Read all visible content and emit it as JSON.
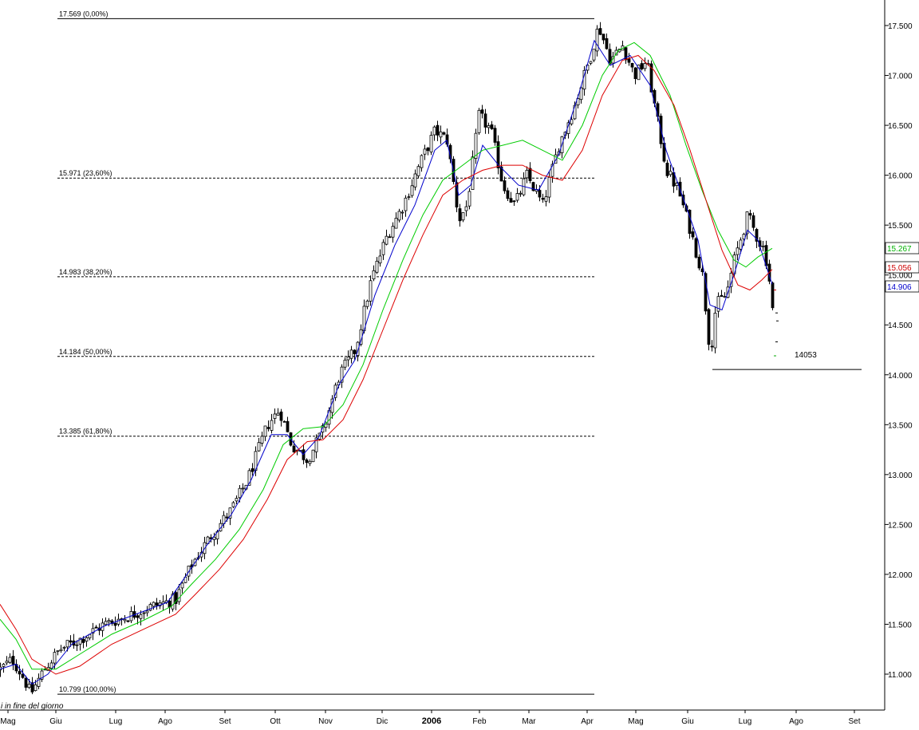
{
  "chart_data": {
    "type": "candlestick",
    "ylim": [
      10600,
      17800
    ],
    "y_ticks": [
      11000,
      11500,
      12000,
      12500,
      13000,
      13500,
      14000,
      14500,
      15000,
      15500,
      16000,
      16500,
      17000,
      17500
    ],
    "y_tick_labels": [
      "11.000",
      "11.500",
      "12.000",
      "12.500",
      "13.000",
      "13.500",
      "14.000",
      "14.500",
      "15.000",
      "15.500",
      "16.000",
      "16.500",
      "17.000",
      "17.500"
    ],
    "x_ticks": [
      {
        "label": "Mag",
        "bold": false
      },
      {
        "label": "Giu",
        "bold": false
      },
      {
        "label": "Lug",
        "bold": false
      },
      {
        "label": "Ago",
        "bold": false
      },
      {
        "label": "Set",
        "bold": false
      },
      {
        "label": "Ott",
        "bold": false
      },
      {
        "label": "Nov",
        "bold": false
      },
      {
        "label": "Dic",
        "bold": false
      },
      {
        "label": "2006",
        "bold": true
      },
      {
        "label": "Feb",
        "bold": false
      },
      {
        "label": "Mar",
        "bold": false
      },
      {
        "label": "Apr",
        "bold": false
      },
      {
        "label": "Mag",
        "bold": false
      },
      {
        "label": "Giu",
        "bold": false
      },
      {
        "label": "Lug",
        "bold": false
      },
      {
        "label": "Ago",
        "bold": false
      },
      {
        "label": "Set",
        "bold": false
      }
    ],
    "fibonacci_levels": [
      {
        "value": 17569,
        "label": "17.569 (0,00%)",
        "style": "solid"
      },
      {
        "value": 15971,
        "label": "15.971 (23,60%)",
        "style": "dashed"
      },
      {
        "value": 14983,
        "label": "14.983 (38,20%)",
        "style": "dashed"
      },
      {
        "value": 14184,
        "label": "14.184 (50,00%)",
        "style": "dashed"
      },
      {
        "value": 13385,
        "label": "13.385 (61,80%)",
        "style": "dashed"
      },
      {
        "value": 10799,
        "label": "10.799 (100,00%)",
        "style": "solid"
      }
    ],
    "support_line": {
      "value": 14053,
      "label": "14053"
    },
    "price_labels": [
      {
        "value": 15267,
        "label": "15.267",
        "color": "#00b000"
      },
      {
        "value": 15056,
        "label": "15.056",
        "color": "#cc0000"
      },
      {
        "value": 14906,
        "label": "14.906",
        "color": "#0000cc"
      }
    ],
    "series": [
      {
        "key": "blue",
        "color": "#0000cc"
      },
      {
        "key": "green",
        "color": "#00cc00"
      },
      {
        "key": "red",
        "color": "#dd0000"
      }
    ],
    "price_path": [
      [
        0,
        11050
      ],
      [
        15,
        11150
      ],
      [
        30,
        10950
      ],
      [
        38,
        10800
      ],
      [
        55,
        11050
      ],
      [
        75,
        11250
      ],
      [
        100,
        11350
      ],
      [
        130,
        11500
      ],
      [
        160,
        11580
      ],
      [
        190,
        11680
      ],
      [
        220,
        11750
      ],
      [
        240,
        12100
      ],
      [
        265,
        12400
      ],
      [
        290,
        12650
      ],
      [
        310,
        12950
      ],
      [
        335,
        13500
      ],
      [
        350,
        13650
      ],
      [
        365,
        13300
      ],
      [
        385,
        13150
      ],
      [
        405,
        13450
      ],
      [
        425,
        14000
      ],
      [
        445,
        14250
      ],
      [
        465,
        14950
      ],
      [
        485,
        15400
      ],
      [
        505,
        15700
      ],
      [
        525,
        16100
      ],
      [
        545,
        16450
      ],
      [
        560,
        16350
      ],
      [
        575,
        15550
      ],
      [
        585,
        15700
      ],
      [
        600,
        16600
      ],
      [
        615,
        16450
      ],
      [
        630,
        15900
      ],
      [
        645,
        15700
      ],
      [
        660,
        16000
      ],
      [
        680,
        15700
      ],
      [
        700,
        16300
      ],
      [
        720,
        16700
      ],
      [
        740,
        17200
      ],
      [
        750,
        17500
      ],
      [
        765,
        17150
      ],
      [
        780,
        17300
      ],
      [
        795,
        17000
      ],
      [
        810,
        17150
      ],
      [
        820,
        16700
      ],
      [
        835,
        16050
      ],
      [
        850,
        15850
      ],
      [
        865,
        15450
      ],
      [
        880,
        15000
      ],
      [
        890,
        14200
      ],
      [
        897,
        14700
      ],
      [
        910,
        14800
      ],
      [
        920,
        15150
      ],
      [
        937,
        15600
      ],
      [
        950,
        15350
      ],
      [
        958,
        15250
      ],
      [
        965,
        14900
      ],
      [
        968,
        14650
      ]
    ],
    "blue_path": [
      [
        0,
        11050
      ],
      [
        20,
        11100
      ],
      [
        40,
        10900
      ],
      [
        60,
        11000
      ],
      [
        90,
        11300
      ],
      [
        130,
        11480
      ],
      [
        170,
        11600
      ],
      [
        210,
        11720
      ],
      [
        230,
        11950
      ],
      [
        260,
        12300
      ],
      [
        290,
        12600
      ],
      [
        315,
        12950
      ],
      [
        340,
        13400
      ],
      [
        360,
        13400
      ],
      [
        380,
        13200
      ],
      [
        400,
        13380
      ],
      [
        425,
        13900
      ],
      [
        445,
        14150
      ],
      [
        470,
        14800
      ],
      [
        495,
        15300
      ],
      [
        520,
        15700
      ],
      [
        545,
        16250
      ],
      [
        560,
        16350
      ],
      [
        575,
        15800
      ],
      [
        590,
        15900
      ],
      [
        605,
        16300
      ],
      [
        625,
        16100
      ],
      [
        650,
        15900
      ],
      [
        675,
        15850
      ],
      [
        700,
        16200
      ],
      [
        725,
        16800
      ],
      [
        745,
        17350
      ],
      [
        765,
        17100
      ],
      [
        790,
        17200
      ],
      [
        815,
        16900
      ],
      [
        835,
        16250
      ],
      [
        855,
        15800
      ],
      [
        875,
        15350
      ],
      [
        890,
        14700
      ],
      [
        905,
        14650
      ],
      [
        920,
        15000
      ],
      [
        937,
        15450
      ],
      [
        950,
        15350
      ],
      [
        960,
        15100
      ],
      [
        968,
        14906
      ]
    ],
    "green_path": [
      [
        0,
        11550
      ],
      [
        20,
        11350
      ],
      [
        40,
        11050
      ],
      [
        70,
        11050
      ],
      [
        100,
        11200
      ],
      [
        140,
        11400
      ],
      [
        180,
        11540
      ],
      [
        215,
        11680
      ],
      [
        240,
        11900
      ],
      [
        270,
        12150
      ],
      [
        300,
        12450
      ],
      [
        330,
        12850
      ],
      [
        355,
        13300
      ],
      [
        380,
        13460
      ],
      [
        405,
        13480
      ],
      [
        430,
        13700
      ],
      [
        455,
        14100
      ],
      [
        480,
        14650
      ],
      [
        505,
        15150
      ],
      [
        530,
        15600
      ],
      [
        555,
        15950
      ],
      [
        580,
        16100
      ],
      [
        605,
        16250
      ],
      [
        630,
        16300
      ],
      [
        655,
        16350
      ],
      [
        680,
        16250
      ],
      [
        705,
        16150
      ],
      [
        730,
        16500
      ],
      [
        755,
        17000
      ],
      [
        775,
        17250
      ],
      [
        795,
        17330
      ],
      [
        815,
        17200
      ],
      [
        840,
        16800
      ],
      [
        860,
        16300
      ],
      [
        880,
        15850
      ],
      [
        900,
        15450
      ],
      [
        920,
        15150
      ],
      [
        935,
        15080
      ],
      [
        950,
        15180
      ],
      [
        968,
        15267
      ]
    ],
    "red_path": [
      [
        0,
        11700
      ],
      [
        20,
        11450
      ],
      [
        40,
        11150
      ],
      [
        70,
        11000
      ],
      [
        100,
        11080
      ],
      [
        140,
        11300
      ],
      [
        180,
        11450
      ],
      [
        220,
        11600
      ],
      [
        245,
        11800
      ],
      [
        275,
        12050
      ],
      [
        305,
        12350
      ],
      [
        335,
        12750
      ],
      [
        360,
        13150
      ],
      [
        385,
        13330
      ],
      [
        405,
        13350
      ],
      [
        430,
        13550
      ],
      [
        455,
        13950
      ],
      [
        480,
        14450
      ],
      [
        505,
        14950
      ],
      [
        530,
        15400
      ],
      [
        555,
        15800
      ],
      [
        580,
        15950
      ],
      [
        605,
        16050
      ],
      [
        630,
        16100
      ],
      [
        655,
        16100
      ],
      [
        680,
        16000
      ],
      [
        705,
        15950
      ],
      [
        730,
        16250
      ],
      [
        755,
        16800
      ],
      [
        780,
        17150
      ],
      [
        800,
        17200
      ],
      [
        820,
        17050
      ],
      [
        845,
        16700
      ],
      [
        865,
        16250
      ],
      [
        885,
        15750
      ],
      [
        905,
        15250
      ],
      [
        925,
        14900
      ],
      [
        940,
        14850
      ],
      [
        955,
        14950
      ],
      [
        968,
        15056
      ]
    ],
    "footnote": "i in fine del giorno"
  }
}
